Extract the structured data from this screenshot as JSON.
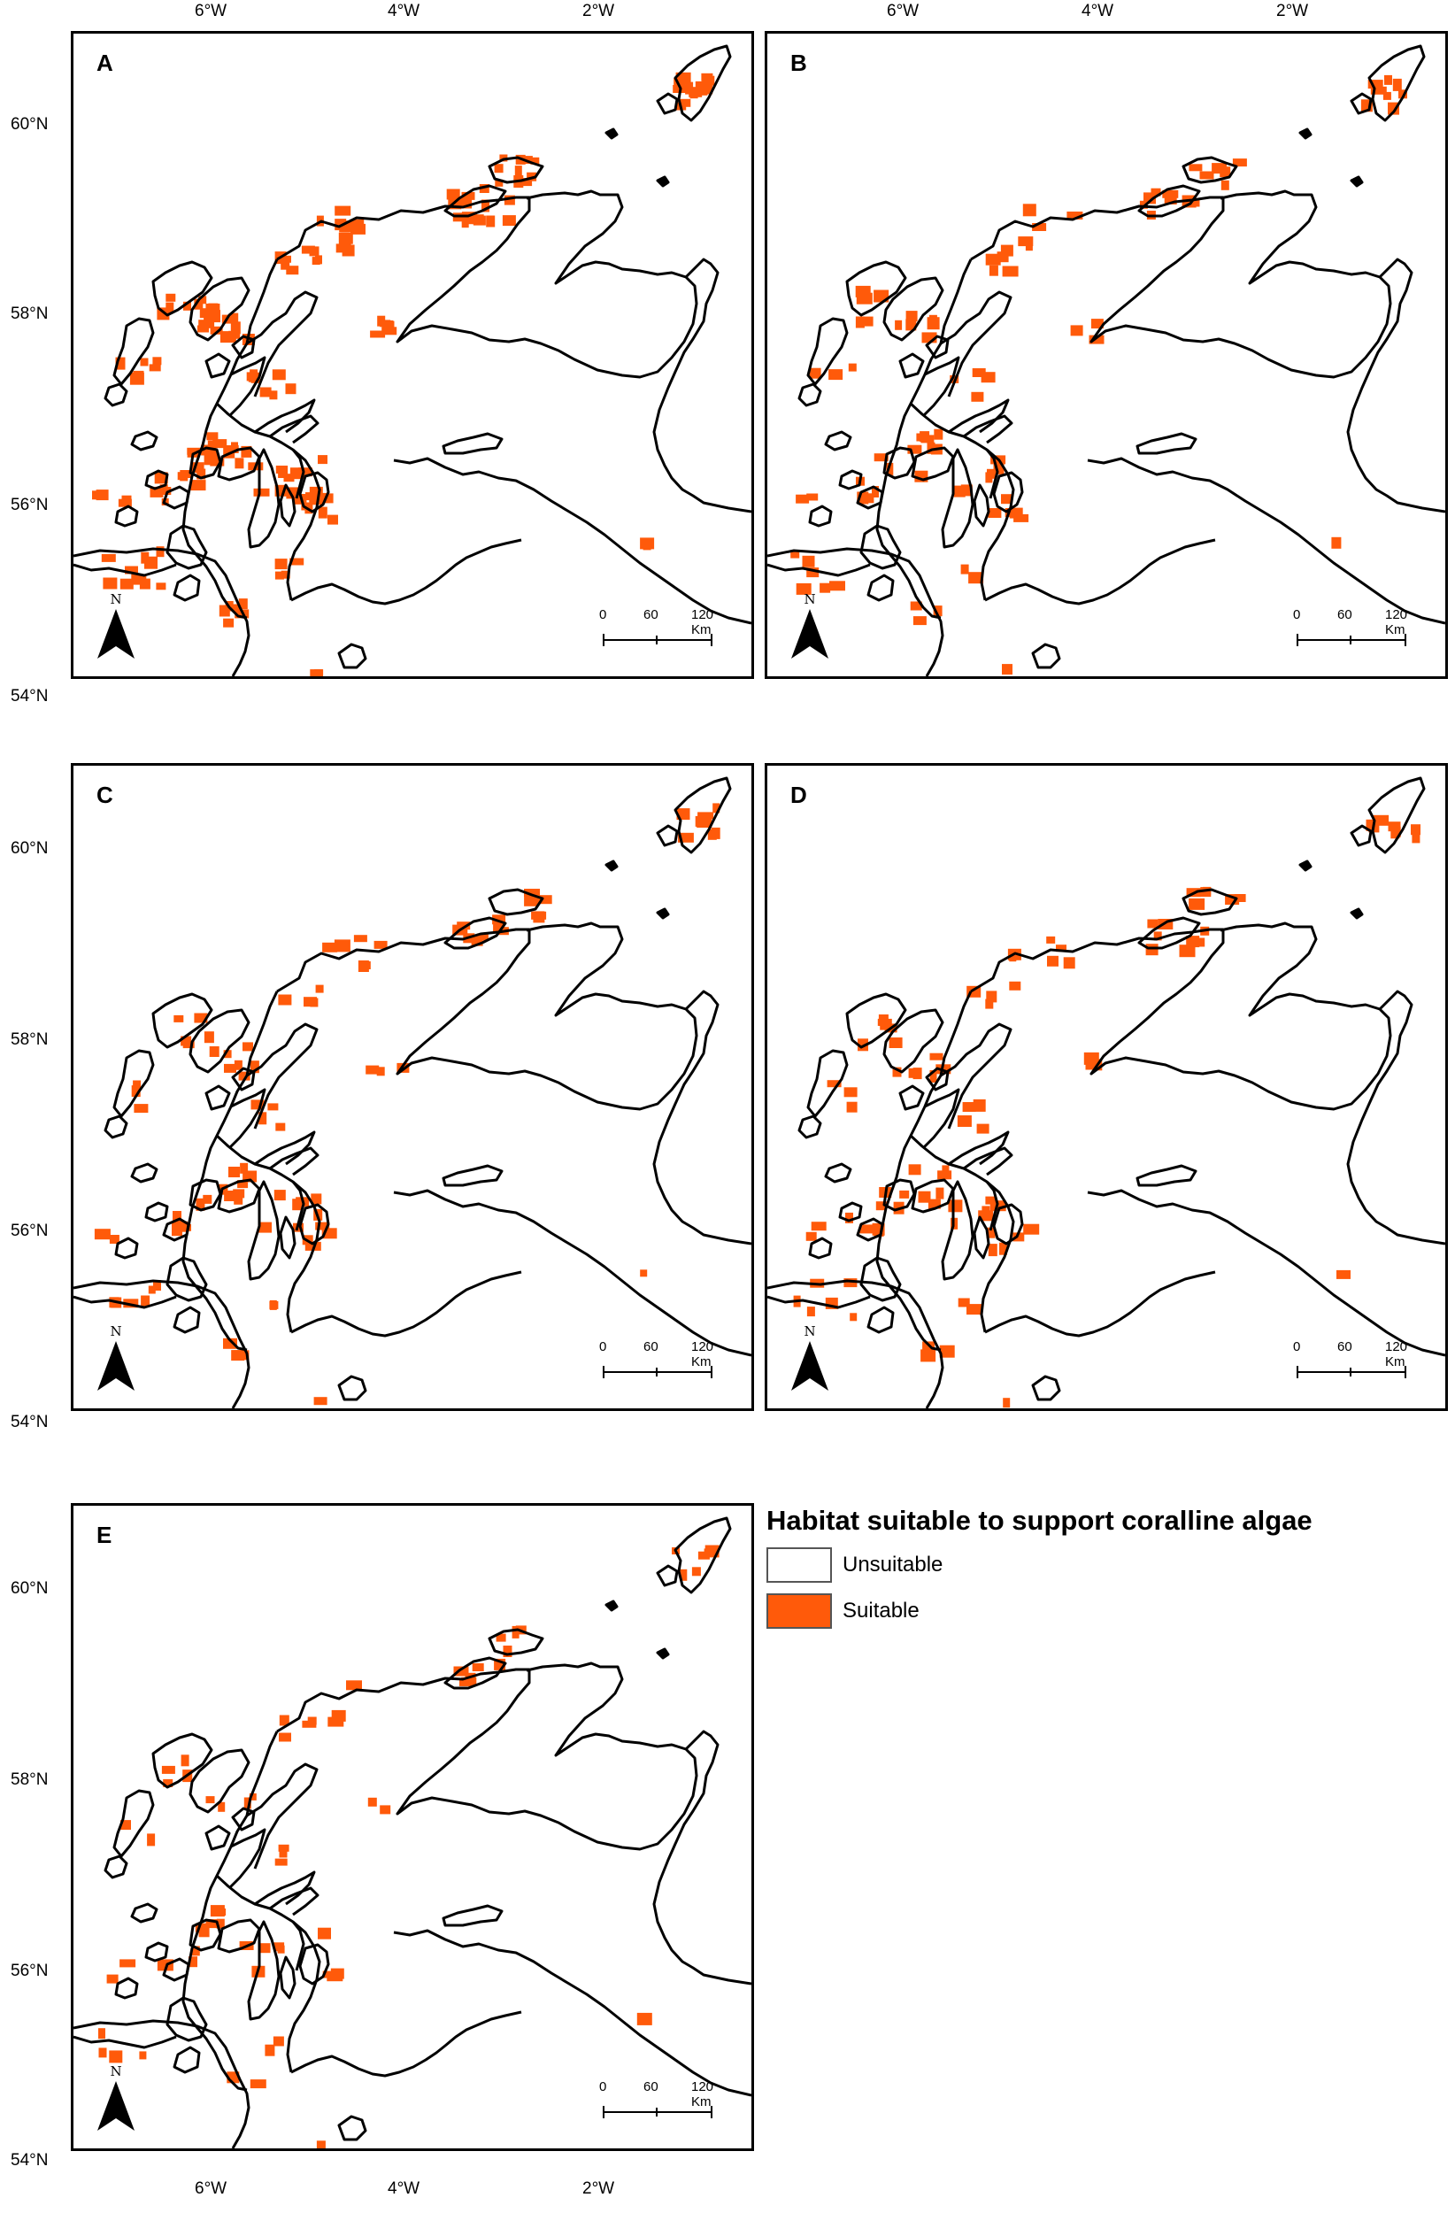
{
  "legend": {
    "title": "Habitat suitable to support coralline algae",
    "items": [
      {
        "label": "Unsuitable",
        "color": "#ffffff"
      },
      {
        "label": "Suitable",
        "color": "#ff5a0a"
      }
    ]
  },
  "axes": {
    "longitude_labels": [
      "6°W",
      "4°W",
      "2°W"
    ],
    "latitude_labels": [
      "60°N",
      "58°N",
      "56°N",
      "54°N"
    ]
  },
  "north_arrow": {
    "label": "N"
  },
  "scale_bar": {
    "t0": "0",
    "t1": "60",
    "t2": "120 Km"
  },
  "panels": [
    {
      "label": "A",
      "suitability": "high"
    },
    {
      "label": "B",
      "suitability": "medium"
    },
    {
      "label": "C",
      "suitability": "medium"
    },
    {
      "label": "D",
      "suitability": "medium"
    },
    {
      "label": "E",
      "suitability": "low"
    }
  ],
  "colors": {
    "suitable": "#ff5a0a",
    "coast": "#000000"
  }
}
